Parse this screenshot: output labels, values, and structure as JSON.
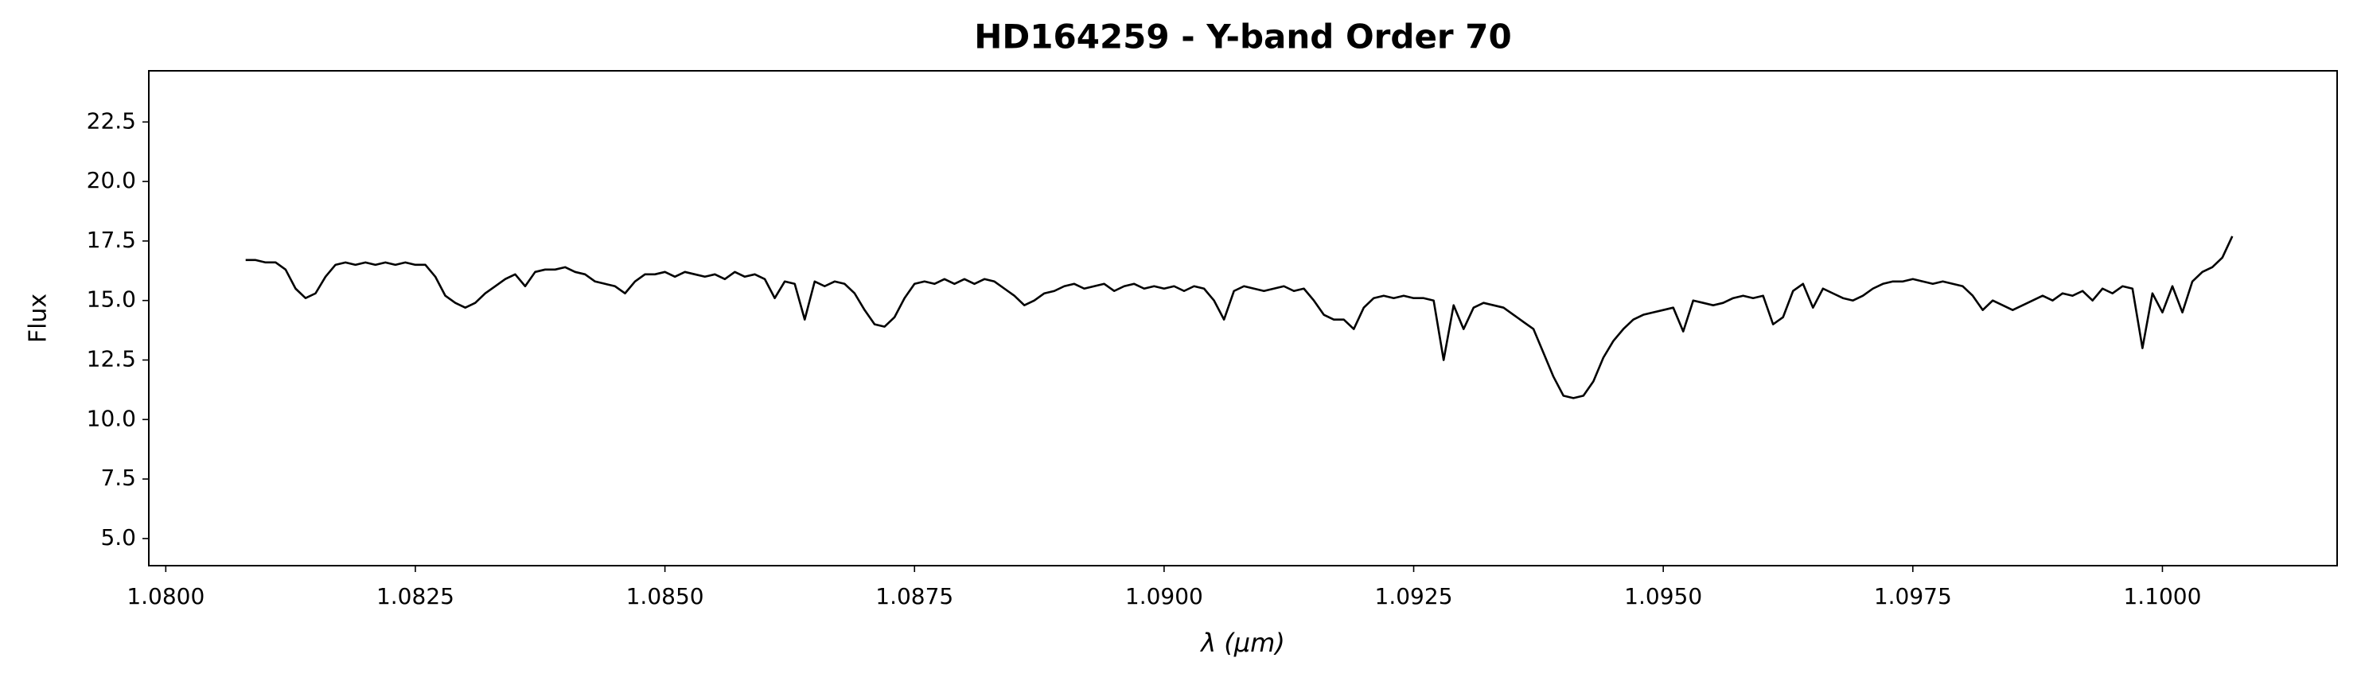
{
  "chart_data": {
    "type": "line",
    "title": "HD164259 - Y-band Order 70",
    "xlabel": "λ (μm)",
    "ylabel": "Flux",
    "color": "#000000",
    "grid": false,
    "xlim": [
      1.07983,
      1.10175
    ],
    "ylim": [
      3.86,
      24.65
    ],
    "xticks": [
      {
        "value": 1.08,
        "label": "1.0800"
      },
      {
        "value": 1.0825,
        "label": "1.0825"
      },
      {
        "value": 1.085,
        "label": "1.0850"
      },
      {
        "value": 1.0875,
        "label": "1.0875"
      },
      {
        "value": 1.09,
        "label": "1.0900"
      },
      {
        "value": 1.0925,
        "label": "1.0925"
      },
      {
        "value": 1.095,
        "label": "1.0950"
      },
      {
        "value": 1.0975,
        "label": "1.0975"
      },
      {
        "value": 1.1,
        "label": "1.1000"
      }
    ],
    "yticks": [
      {
        "value": 5,
        "label": "5.0"
      },
      7.5,
      {
        "value": 10,
        "label": "10.0"
      },
      12.5,
      {
        "value": 15,
        "label": "15.0"
      },
      17.5,
      {
        "value": 20,
        "label": "20.0"
      },
      22.5
    ],
    "x": [
      1.0808,
      1.0809,
      1.081,
      1.0811,
      1.0812,
      1.0813,
      1.0814,
      1.0815,
      1.0816,
      1.0817,
      1.0818,
      1.0819,
      1.082,
      1.0821,
      1.0822,
      1.0823,
      1.0824,
      1.0825,
      1.0826,
      1.0827,
      1.0828,
      1.0829,
      1.083,
      1.0831,
      1.0832,
      1.0833,
      1.0834,
      1.0835,
      1.0836,
      1.0837,
      1.0838,
      1.0839,
      1.084,
      1.0841,
      1.0842,
      1.0843,
      1.0844,
      1.0845,
      1.0846,
      1.0847,
      1.0848,
      1.0849,
      1.085,
      1.0851,
      1.0852,
      1.0853,
      1.0854,
      1.0855,
      1.0856,
      1.0857,
      1.0858,
      1.0859,
      1.086,
      1.0861,
      1.0862,
      1.0863,
      1.0864,
      1.0865,
      1.0866,
      1.0867,
      1.0868,
      1.0869,
      1.087,
      1.0871,
      1.0872,
      1.0873,
      1.0874,
      1.0875,
      1.0876,
      1.0877,
      1.0878,
      1.0879,
      1.088,
      1.0881,
      1.0882,
      1.0883,
      1.0884,
      1.0885,
      1.0886,
      1.0887,
      1.0888,
      1.0889,
      1.089,
      1.0891,
      1.0892,
      1.0893,
      1.0894,
      1.0895,
      1.0896,
      1.0897,
      1.0898,
      1.0899,
      1.09,
      1.0901,
      1.0902,
      1.0903,
      1.0904,
      1.0905,
      1.0906,
      1.0907,
      1.0908,
      1.0909,
      1.091,
      1.0911,
      1.0912,
      1.0913,
      1.0914,
      1.0915,
      1.0916,
      1.0917,
      1.0918,
      1.0919,
      1.092,
      1.0921,
      1.0922,
      1.0923,
      1.0924,
      1.0925,
      1.0926,
      1.0927,
      1.0928,
      1.0929,
      1.093,
      1.0931,
      1.0932,
      1.0933,
      1.0934,
      1.0935,
      1.0936,
      1.0937,
      1.0938,
      1.0939,
      1.094,
      1.0941,
      1.0942,
      1.0943,
      1.0944,
      1.0945,
      1.0946,
      1.0947,
      1.0948,
      1.0949,
      1.095,
      1.0951,
      1.0952,
      1.0953,
      1.0954,
      1.0955,
      1.0956,
      1.0957,
      1.0958,
      1.0959,
      1.096,
      1.0961,
      1.0962,
      1.0963,
      1.0964,
      1.0965,
      1.0966,
      1.0967,
      1.0968,
      1.0969,
      1.097,
      1.0971,
      1.0972,
      1.0973,
      1.0974,
      1.0975,
      1.0976,
      1.0977,
      1.0978,
      1.0979,
      1.098,
      1.0981,
      1.0982,
      1.0983,
      1.0984,
      1.0985,
      1.0986,
      1.0987,
      1.0988,
      1.0989,
      1.099,
      1.0991,
      1.0992,
      1.0993,
      1.0994,
      1.0995,
      1.0996,
      1.0997,
      1.0998,
      1.0999,
      1.1,
      1.1001,
      1.1002,
      1.1003,
      1.1004,
      1.1005,
      1.1006,
      1.1007
    ],
    "values": [
      16.7,
      16.7,
      16.6,
      16.6,
      16.3,
      15.5,
      15.1,
      15.3,
      16.0,
      16.5,
      16.6,
      16.5,
      16.6,
      16.5,
      16.6,
      16.5,
      16.6,
      16.5,
      16.5,
      16.0,
      15.2,
      14.9,
      14.7,
      14.9,
      15.3,
      15.6,
      15.9,
      16.1,
      15.6,
      16.2,
      16.3,
      16.3,
      16.4,
      16.2,
      16.1,
      15.8,
      15.7,
      15.6,
      15.3,
      15.8,
      16.1,
      16.1,
      16.2,
      16.0,
      16.2,
      16.1,
      16.0,
      16.1,
      15.9,
      16.2,
      16.0,
      16.1,
      15.9,
      15.1,
      15.8,
      15.7,
      14.2,
      15.8,
      15.6,
      15.8,
      15.7,
      15.3,
      14.6,
      14.0,
      13.9,
      14.3,
      15.1,
      15.7,
      15.8,
      15.7,
      15.9,
      15.7,
      15.9,
      15.7,
      15.9,
      15.8,
      15.5,
      15.2,
      14.8,
      15.0,
      15.3,
      15.4,
      15.6,
      15.7,
      15.5,
      15.6,
      15.7,
      15.4,
      15.6,
      15.7,
      15.5,
      15.6,
      15.5,
      15.6,
      15.4,
      15.6,
      15.5,
      15.0,
      14.2,
      15.4,
      15.6,
      15.5,
      15.4,
      15.5,
      15.6,
      15.4,
      15.5,
      15.0,
      14.4,
      14.2,
      14.2,
      13.8,
      14.7,
      15.1,
      15.2,
      15.1,
      15.2,
      15.1,
      15.1,
      15.0,
      12.5,
      14.8,
      13.8,
      14.7,
      14.9,
      14.8,
      14.7,
      14.4,
      14.1,
      13.8,
      12.8,
      11.8,
      11.0,
      10.9,
      11.0,
      11.6,
      12.6,
      13.3,
      13.8,
      14.2,
      14.4,
      14.5,
      14.6,
      14.7,
      13.7,
      15.0,
      14.9,
      14.8,
      14.9,
      15.1,
      15.2,
      15.1,
      15.2,
      14.0,
      14.3,
      15.4,
      15.7,
      14.7,
      15.5,
      15.3,
      15.1,
      15.0,
      15.2,
      15.5,
      15.7,
      15.8,
      15.8,
      15.9,
      15.8,
      15.7,
      15.8,
      15.7,
      15.6,
      15.2,
      14.6,
      15.0,
      14.8,
      14.6,
      14.8,
      15.0,
      15.2,
      15.0,
      15.3,
      15.2,
      15.4,
      15.0,
      15.5,
      15.3,
      15.6,
      15.5,
      13.0,
      15.3,
      14.5,
      15.6,
      14.5,
      15.8,
      16.2,
      16.4,
      16.8,
      17.7
    ]
  }
}
